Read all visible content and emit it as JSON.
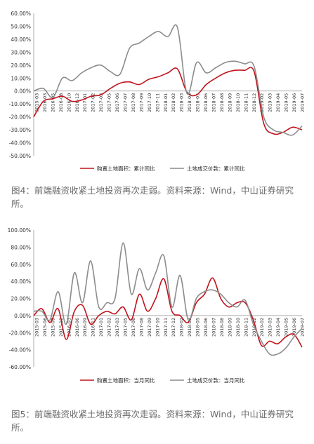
{
  "charts": [
    {
      "caption": "图4：前端融资收紧土地投资再次走弱。资料来源：Wind，中山证券研究所。",
      "chart_data": {
        "type": "line",
        "title": "",
        "xlabel": "",
        "ylabel": "",
        "ylim": [
          -50,
          60
        ],
        "yticks": [
          "60.00%",
          "50.00%",
          "40.00%",
          "30.00%",
          "20.00%",
          "10.00%",
          "0.00%",
          "-10.00%",
          "-20.00%",
          "-30.00%",
          "-40.00%",
          "-50.00%"
        ],
        "x": [
          "2015-03",
          "2015-06",
          "2015-09",
          "2015-12",
          "2016-03",
          "2016-06",
          "2016-09",
          "2016-12",
          "2017-02",
          "2017-03",
          "2017-05",
          "2017-06",
          "2017-08",
          "2017-09",
          "2017-11",
          "2018-01",
          "2018-02",
          "2018-03",
          "2018-05",
          "2018-06",
          "2018-08",
          "2018-09",
          "2018-11",
          "2018-12",
          "2019-02",
          "2019-03",
          "2019-05",
          "2019-06",
          "2019-07"
        ],
        "xticks": [
          "2015-03",
          "2016-03",
          "2016-05",
          "2016-08",
          "2016-10",
          "2016-12",
          "2017-01",
          "2017-02",
          "2017-03",
          "2017-05",
          "2017-06",
          "2017-07",
          "2017-08",
          "2017-09",
          "2017-10",
          "2017-11",
          "2018-01",
          "2018-02",
          "2018-03",
          "2018-04",
          "2018-05",
          "2018-06",
          "2018-07",
          "2018-08",
          "2018-09",
          "2018-10",
          "2018-11",
          "2018-12",
          "2019-02",
          "2019-03",
          "2019-04",
          "2019-05",
          "2019-06",
          "2019-07"
        ],
        "legend_position": "bottom",
        "series": [
          {
            "name": "购置土地面积：累计同比",
            "color": "#c0141c",
            "values": [
              -20,
              -8,
              -6,
              -4,
              -8,
              -7,
              -4,
              -3,
              2,
              6,
              7,
              5,
              9,
              11,
              14,
              17,
              -1,
              -3,
              5,
              10,
              14,
              16,
              16,
              15,
              -25,
              -33,
              -32,
              -28,
              -30
            ]
          },
          {
            "name": "土地成交价款：累计同比",
            "color": "#8c8c8c",
            "values": [
              0,
              2,
              -5,
              10,
              8,
              14,
              18,
              20,
              15,
              13,
              33,
              37,
              42,
              46,
              42,
              49,
              -2,
              22,
              14,
              18,
              22,
              23,
              21,
              19,
              -20,
              -30,
              -32,
              -34,
              -27
            ]
          }
        ]
      }
    },
    {
      "caption": "图5：前端融资收紧土地投资再次走弱。资料来源：Wind，中山证券研究所。",
      "chart_data": {
        "type": "line",
        "title": "",
        "xlabel": "",
        "ylabel": "",
        "ylim": [
          -60,
          100
        ],
        "yticks": [
          "100.00%",
          "80.00%",
          "60.00%",
          "40.00%",
          "20.00%",
          "0.00%",
          "-20.00%",
          "-40.00%",
          "-60.00%"
        ],
        "x": [
          "2015-03",
          "2015-06",
          "2015-09",
          "2015-12",
          "2016-03",
          "2016-06",
          "2016-09",
          "2016-12",
          "2017-01",
          "2017-02",
          "2017-03",
          "2017-05",
          "2017-06",
          "2017-08",
          "2017-09",
          "2017-10",
          "2017-11",
          "2017-12",
          "2018-02",
          "2018-03",
          "2018-05",
          "2018-06",
          "2018-07",
          "2018-08",
          "2018-09",
          "2018-10",
          "2018-11",
          "2018-12",
          "2019-02",
          "2019-03",
          "2019-04",
          "2019-05",
          "2019-06",
          "2019-07"
        ],
        "xticks": [
          "2015-03",
          "2015-06",
          "2015-09",
          "2015-12",
          "2016-03",
          "2016-06",
          "2016-09",
          "2016-11",
          "2017-01",
          "2017-02",
          "2017-03",
          "2017-05",
          "2017-06",
          "2017-08",
          "2017-09",
          "2017-10",
          "2017-11",
          "2017-12",
          "2018-02",
          "2018-03",
          "2018-05",
          "2018-06",
          "2018-07",
          "2018-08",
          "2018-09",
          "2018-10",
          "2018-11",
          "2018-12",
          "2019-02",
          "2019-03",
          "2019-04",
          "2019-05",
          "2019-06",
          "2019-07"
        ],
        "legend_position": "bottom",
        "series": [
          {
            "name": "购置土地面积：当月同比",
            "color": "#c0141c",
            "values": [
              0,
              8,
              -8,
              8,
              -28,
              5,
              12,
              -10,
              0,
              5,
              2,
              10,
              -5,
              25,
              5,
              20,
              43,
              5,
              0,
              -8,
              15,
              25,
              44,
              20,
              10,
              15,
              15,
              -5,
              -35,
              -30,
              -33,
              -25,
              -22,
              -37
            ]
          },
          {
            "name": "土地成交价款：当月同比",
            "color": "#8c8c8c",
            "values": [
              5,
              5,
              -5,
              28,
              -10,
              50,
              15,
              64,
              10,
              15,
              20,
              85,
              25,
              55,
              30,
              50,
              70,
              10,
              47,
              -5,
              20,
              28,
              30,
              25,
              15,
              10,
              18,
              -10,
              -30,
              -45,
              -45,
              -38,
              -25,
              -15
            ]
          }
        ]
      }
    }
  ]
}
